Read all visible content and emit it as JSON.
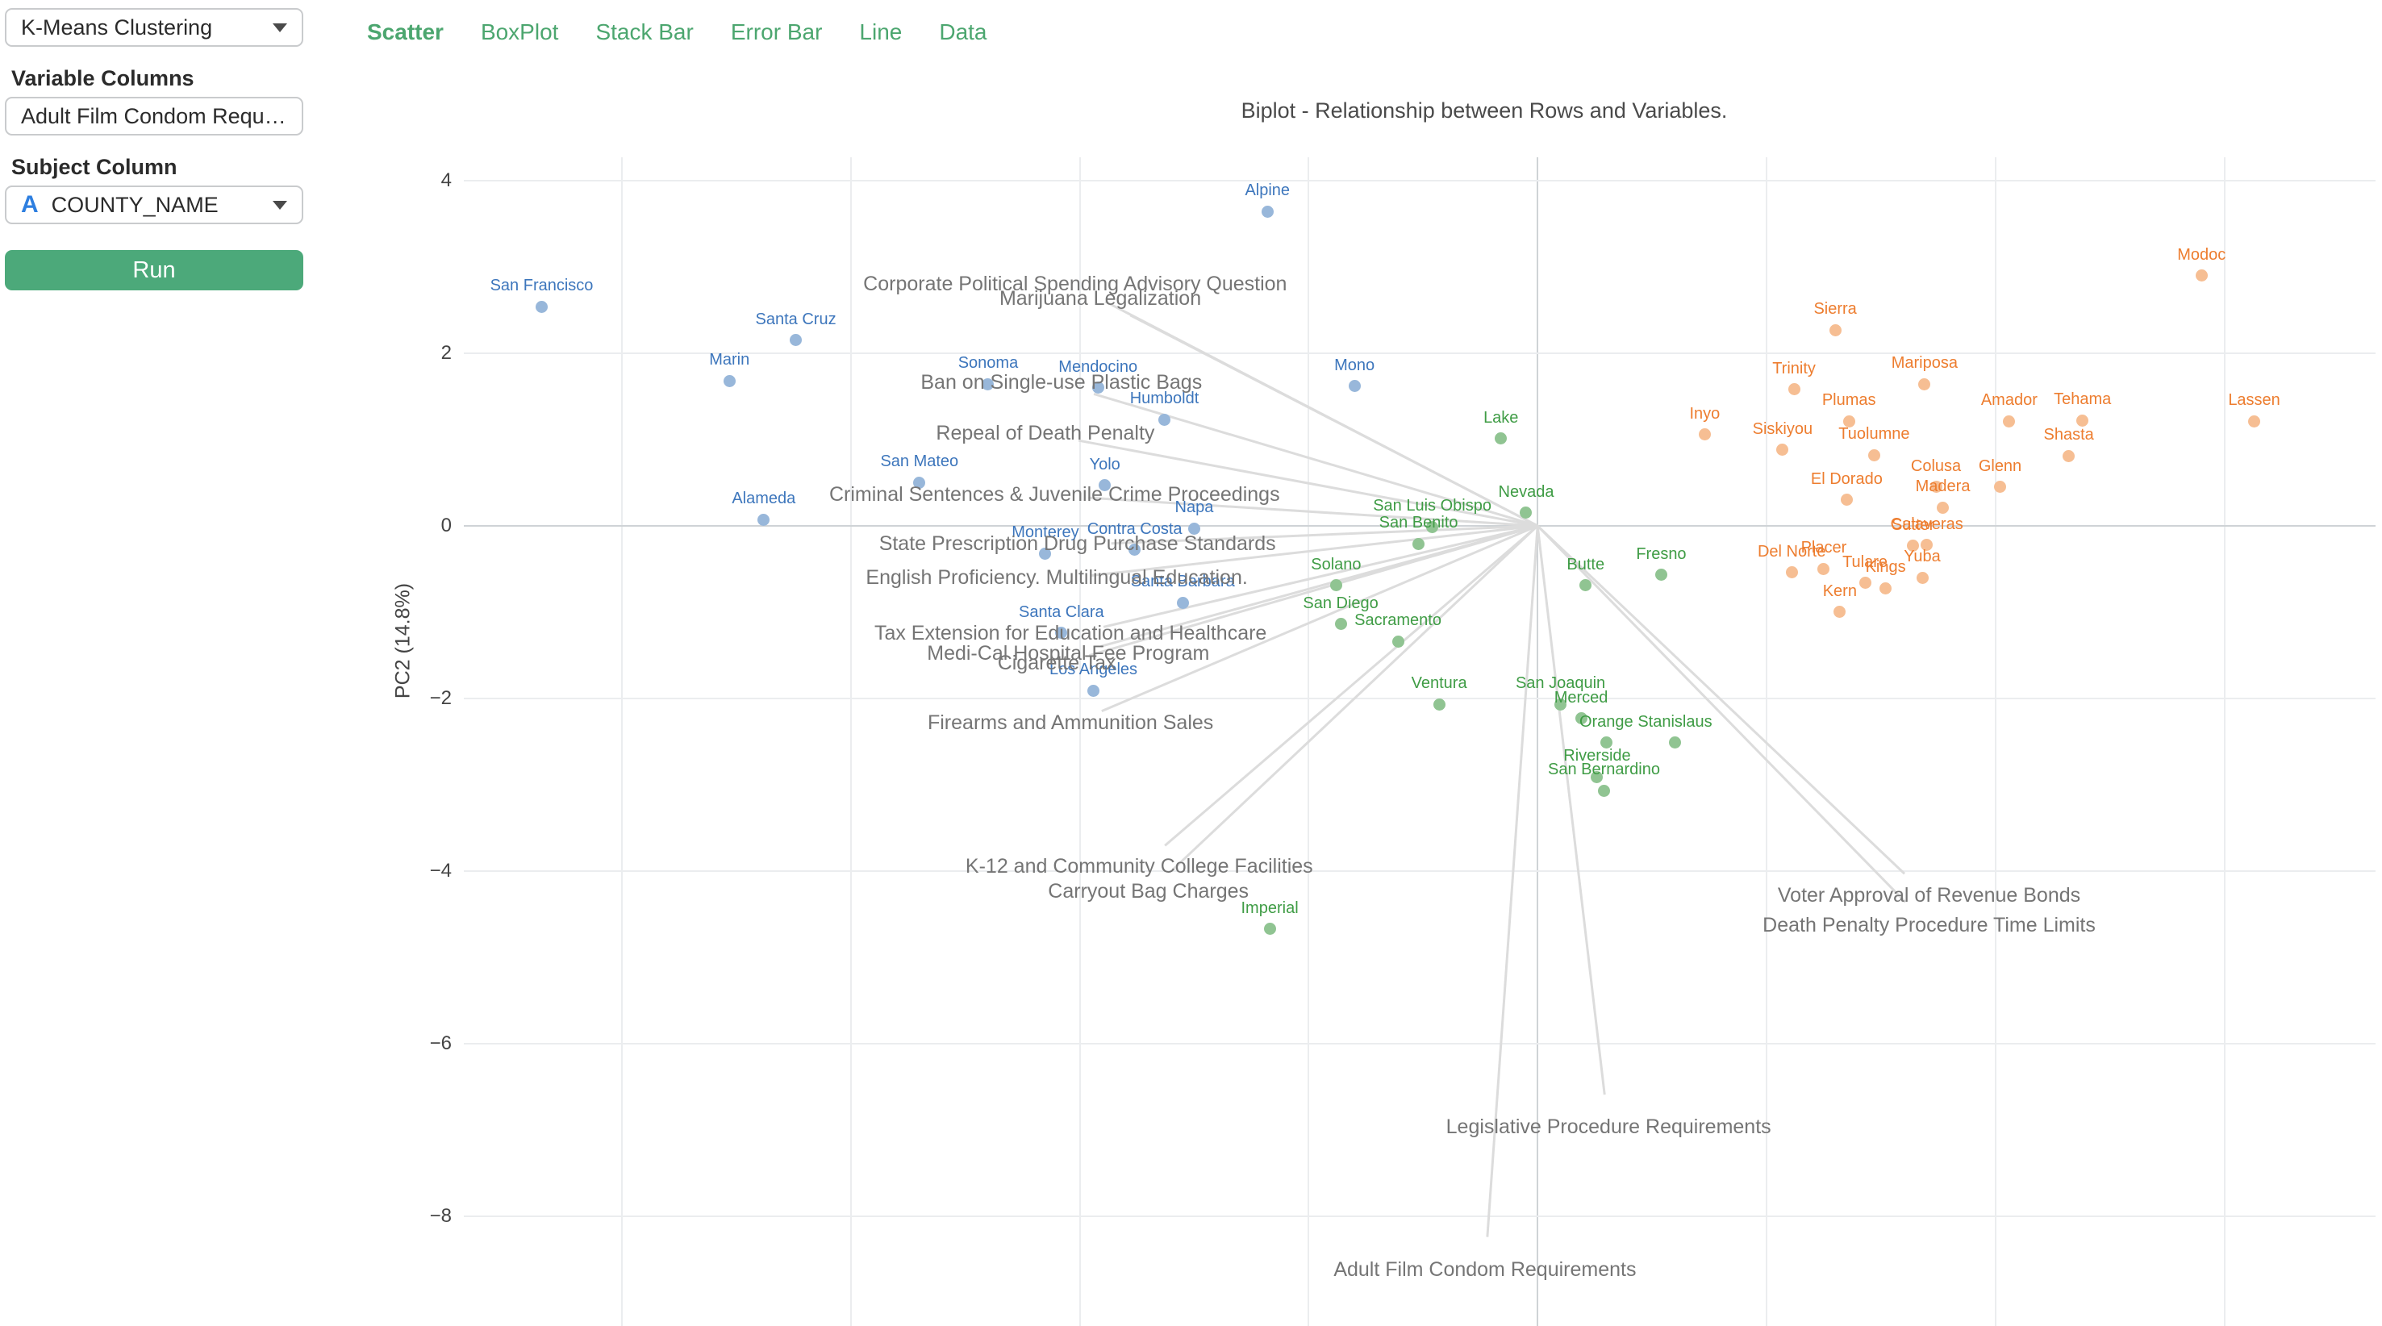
{
  "sidebar": {
    "clustering_dropdown": {
      "value": "K-Means Clustering"
    },
    "variable_columns_label": "Variable Columns",
    "variable_columns_value": "Adult Film Condom Requir…",
    "subject_column_label": "Subject Column",
    "subject_dropdown": {
      "icon": "A",
      "value": "COUNTY_NAME"
    },
    "run_label": "Run"
  },
  "tabs": [
    {
      "label": "Scatter",
      "active": true
    },
    {
      "label": "BoxPlot",
      "active": false
    },
    {
      "label": "Stack Bar",
      "active": false
    },
    {
      "label": "Error Bar",
      "active": false
    },
    {
      "label": "Line",
      "active": false
    },
    {
      "label": "Data",
      "active": false
    }
  ],
  "chart_data": {
    "type": "scatter",
    "title": "Biplot - Relationship between Rows and Variables.",
    "xlabel": "",
    "ylabel": "PC2 (14.8%)",
    "x_range": [
      -4.69,
      3.66
    ],
    "y_range": [
      -9.27,
      4.27
    ],
    "y_ticks": [
      4,
      2,
      0,
      -2,
      -4,
      -6,
      -8
    ],
    "x_gridlines": [
      -4,
      -3,
      -2,
      -1,
      0,
      1,
      2,
      3
    ],
    "grid": true,
    "legend_position": "none",
    "colors": {
      "grid": "#ebedef",
      "zeroline": "#cfd3d6",
      "loading_line": "#dcdcdc",
      "loading_text": "#757575"
    },
    "series": [
      {
        "name": "cluster-blue",
        "label_color": "#3d76bc",
        "dot_color": "#98b7da",
        "points": [
          {
            "label": "San Francisco",
            "x": -4.35,
            "y": 2.54
          },
          {
            "label": "Santa Cruz",
            "x": -3.24,
            "y": 2.15
          },
          {
            "label": "Marin",
            "x": -3.53,
            "y": 1.68
          },
          {
            "label": "Alpine",
            "x": -1.18,
            "y": 3.64
          },
          {
            "label": "Sonoma",
            "x": -2.4,
            "y": 1.64
          },
          {
            "label": "Mendocino",
            "x": -1.92,
            "y": 1.6
          },
          {
            "label": "Humboldt",
            "x": -1.63,
            "y": 1.23
          },
          {
            "label": "Mono",
            "x": -0.8,
            "y": 1.62
          },
          {
            "label": "San Mateo",
            "x": -2.7,
            "y": 0.5
          },
          {
            "label": "Yolo",
            "x": -1.89,
            "y": 0.47
          },
          {
            "label": "Alameda",
            "x": -3.38,
            "y": 0.07
          },
          {
            "label": "Napa",
            "x": -1.5,
            "y": -0.03
          },
          {
            "label": "Monterey",
            "x": -2.15,
            "y": -0.32
          },
          {
            "label": "Contra Costa",
            "x": -1.76,
            "y": -0.28
          },
          {
            "label": "Santa Barbara",
            "x": -1.55,
            "y": -0.89
          },
          {
            "label": "Santa Clara",
            "x": -2.08,
            "y": -1.24
          },
          {
            "label": "Los Angeles",
            "x": -1.94,
            "y": -1.91
          }
        ]
      },
      {
        "name": "cluster-green",
        "label_color": "#3f9c45",
        "dot_color": "#90c492",
        "points": [
          {
            "label": "Lake",
            "x": -0.16,
            "y": 1.01
          },
          {
            "label": "Nevada",
            "x": -0.05,
            "y": 0.15
          },
          {
            "label": "San Luis Obispo",
            "x": -0.46,
            "y": -0.01
          },
          {
            "label": "San Benito",
            "x": -0.52,
            "y": -0.21
          },
          {
            "label": "Solano",
            "x": -0.88,
            "y": -0.69
          },
          {
            "label": "San Diego",
            "x": -0.86,
            "y": -1.14
          },
          {
            "label": "Sacramento",
            "x": -0.61,
            "y": -1.34
          },
          {
            "label": "Butte",
            "x": 0.21,
            "y": -0.69
          },
          {
            "label": "Fresno",
            "x": 0.54,
            "y": -0.57
          },
          {
            "label": "Ventura",
            "x": -0.43,
            "y": -2.07
          },
          {
            "label": "San Joaquin",
            "x": 0.1,
            "y": -2.07
          },
          {
            "label": "Merced",
            "x": 0.19,
            "y": -2.23
          },
          {
            "label": "Orange",
            "x": 0.3,
            "y": -2.51
          },
          {
            "label": "Stanislaus",
            "x": 0.6,
            "y": -2.51
          },
          {
            "label": "Riverside",
            "x": 0.26,
            "y": -2.91
          },
          {
            "label": "San Bernardino",
            "x": 0.29,
            "y": -3.07
          },
          {
            "label": "Imperial",
            "x": -1.17,
            "y": -4.67
          }
        ]
      },
      {
        "name": "cluster-orange",
        "label_color": "#ed7d2f",
        "dot_color": "#f6be93",
        "points": [
          {
            "label": "Modoc",
            "x": 2.9,
            "y": 2.9
          },
          {
            "label": "Sierra",
            "x": 1.3,
            "y": 2.27
          },
          {
            "label": "Trinity",
            "x": 1.12,
            "y": 1.58
          },
          {
            "label": "Mariposa",
            "x": 1.69,
            "y": 1.64
          },
          {
            "label": "Inyo",
            "x": 0.73,
            "y": 1.06
          },
          {
            "label": "Plumas",
            "x": 1.36,
            "y": 1.21
          },
          {
            "label": "Amador",
            "x": 2.06,
            "y": 1.21
          },
          {
            "label": "Tehama",
            "x": 2.38,
            "y": 1.22
          },
          {
            "label": "Lassen",
            "x": 3.13,
            "y": 1.21
          },
          {
            "label": "Siskiyou",
            "x": 1.07,
            "y": 0.88
          },
          {
            "label": "Tuolumne",
            "x": 1.47,
            "y": 0.82
          },
          {
            "label": "Shasta",
            "x": 2.32,
            "y": 0.81
          },
          {
            "label": "El Dorado",
            "x": 1.35,
            "y": 0.3
          },
          {
            "label": "Colusa",
            "x": 1.74,
            "y": 0.45
          },
          {
            "label": "Glenn",
            "x": 2.02,
            "y": 0.45
          },
          {
            "label": "Madera",
            "x": 1.77,
            "y": 0.21
          },
          {
            "label": "Calaveras",
            "x": 1.7,
            "y": -0.22
          },
          {
            "label": "Sutter",
            "x": 1.64,
            "y": -0.23
          },
          {
            "label": "Del Norte",
            "x": 1.11,
            "y": -0.54
          },
          {
            "label": "Placer",
            "x": 1.25,
            "y": -0.5
          },
          {
            "label": "Tulare",
            "x": 1.43,
            "y": -0.66
          },
          {
            "label": "Kings",
            "x": 1.52,
            "y": -0.72
          },
          {
            "label": "Yuba",
            "x": 1.68,
            "y": -0.6
          },
          {
            "label": "Kern",
            "x": 1.32,
            "y": -1.0
          }
        ]
      }
    ],
    "loadings": [
      {
        "label": "Corporate Political Spending Advisory Question",
        "x": -2.02,
        "y": 2.78
      },
      {
        "label": "Marijuana Legalization",
        "x": -1.91,
        "y": 2.62
      },
      {
        "label": "Ban on Single-use Plastic Bags",
        "x": -2.08,
        "y": 1.64
      },
      {
        "label": "Repeal of Death Penalty",
        "x": -2.15,
        "y": 1.06
      },
      {
        "label": "Criminal Sentences & Juvenile Crime Proceedings",
        "x": -2.11,
        "y": 0.35
      },
      {
        "label": "State Prescription Drug Purchase Standards",
        "x": -2.01,
        "y": -0.22
      },
      {
        "label": "English Proficiency. Multilingual Education.",
        "x": -2.1,
        "y": -0.62
      },
      {
        "label": "Tax Extension for Education and Healthcare",
        "x": -2.04,
        "y": -1.26
      },
      {
        "label": "Medi-Cal Hospital Fee Program",
        "x": -2.05,
        "y": -1.5
      },
      {
        "label": "Cigarette Tax",
        "x": -2.1,
        "y": -1.61
      },
      {
        "label": "Firearms and Ammunition Sales",
        "x": -2.04,
        "y": -2.3
      },
      {
        "label": "K-12 and Community College Facilities",
        "x": -1.74,
        "y": -3.96
      },
      {
        "label": "Carryout Bag Charges",
        "x": -1.7,
        "y": -4.25
      },
      {
        "label": "Voter Approval of Revenue Bonds",
        "x": 1.71,
        "y": -4.3
      },
      {
        "label": "Death Penalty Procedure Time Limits",
        "x": 1.71,
        "y": -4.64
      },
      {
        "label": "Legislative Procedure Requirements",
        "x": 0.31,
        "y": -6.98
      },
      {
        "label": "Adult Film Condom Requirements",
        "x": -0.23,
        "y": -8.63
      }
    ]
  }
}
